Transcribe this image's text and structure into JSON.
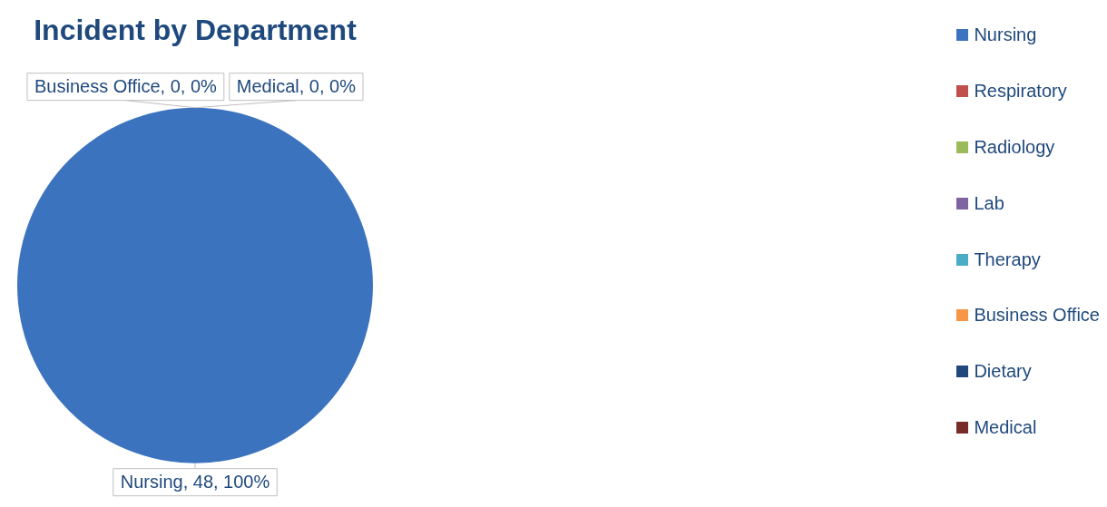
{
  "chart_data": {
    "type": "pie",
    "title": "Incident by Department",
    "categories": [
      "Nursing",
      "Respiratory",
      "Radiology",
      "Lab",
      "Therapy",
      "Business Office",
      "Dietary",
      "Medical"
    ],
    "values": [
      48,
      0,
      0,
      0,
      0,
      0,
      0,
      0
    ],
    "colors": [
      "#3b73be",
      "#c0504d",
      "#9bbb59",
      "#8064a2",
      "#4bacc6",
      "#f79646",
      "#1f497d",
      "#772c2a"
    ],
    "value_labels": [
      "Nursing, 48, 100%",
      null,
      null,
      null,
      null,
      "Business Office, 0, 0%",
      null,
      "Medical, 0, 0%"
    ],
    "legend": "right"
  }
}
